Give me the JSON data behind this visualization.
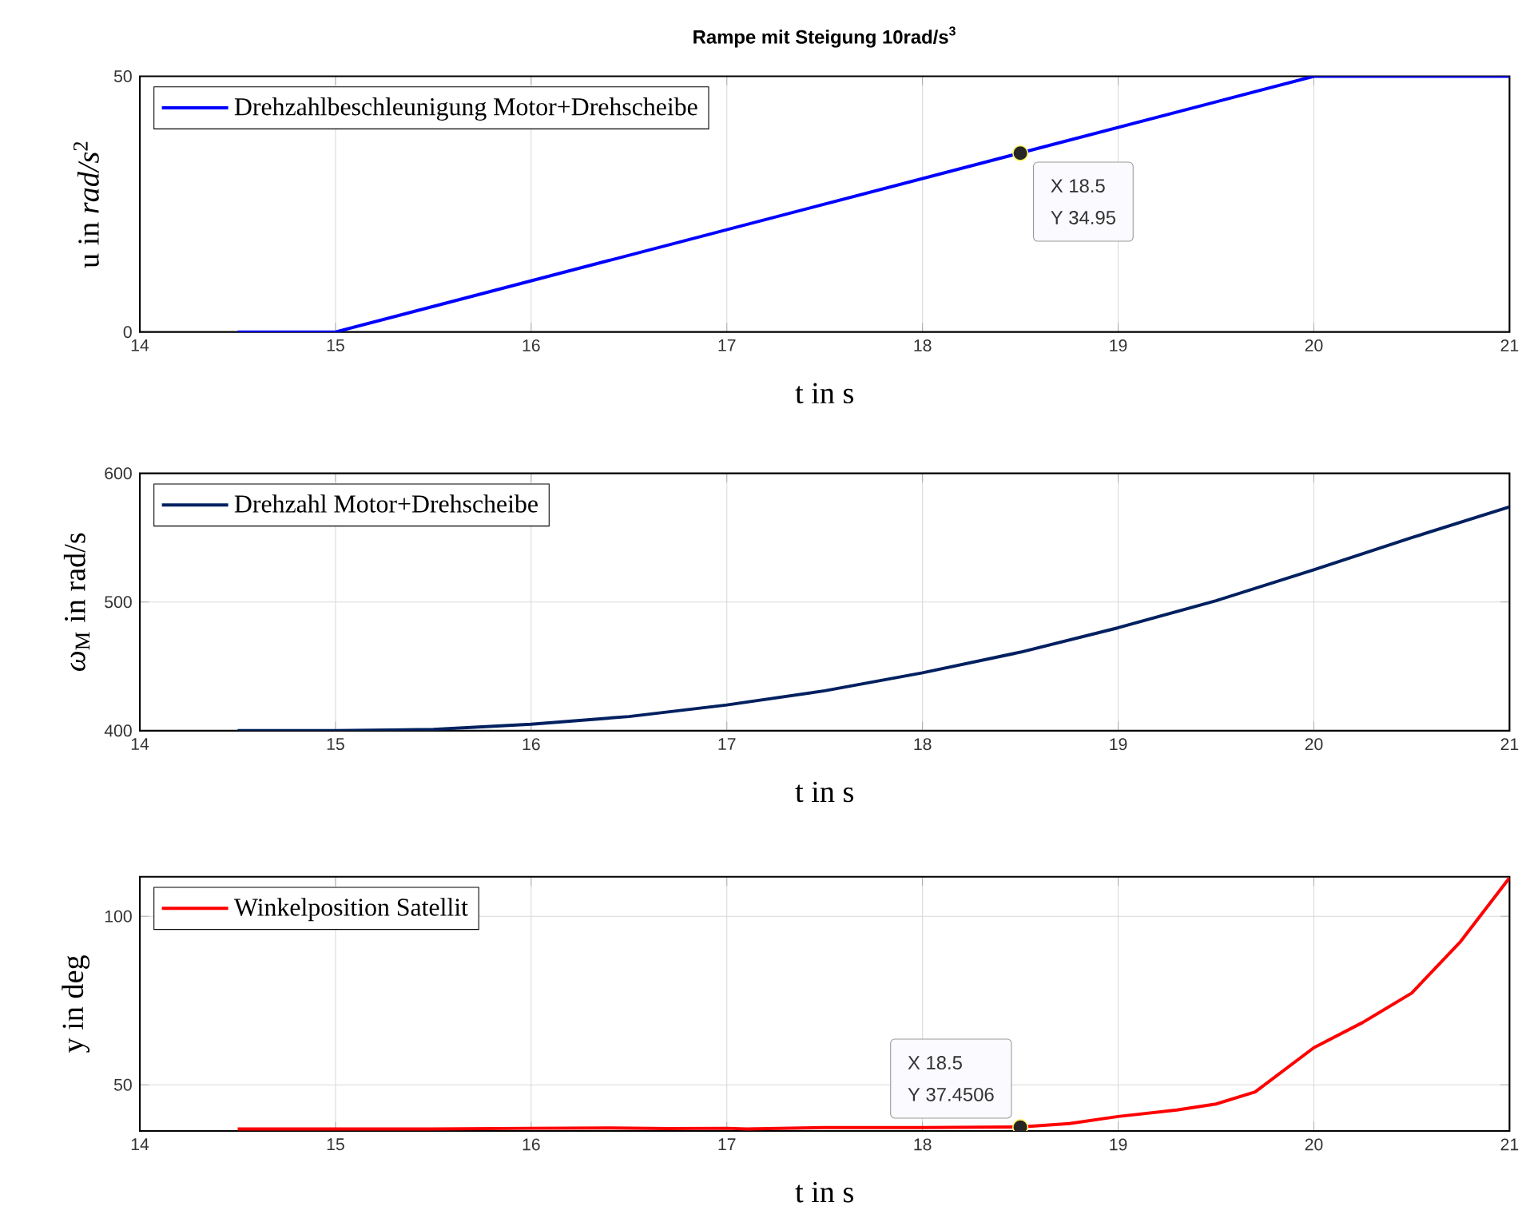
{
  "chart_data": [
    {
      "type": "line",
      "title": "Rampe mit Steigung 10rad/s$^{3}$",
      "xlabel": "t in s",
      "ylabel": "u in *rad/s*$^{2}$",
      "series": [
        {
          "name": "Drehzahlbeschleunigung Motor+Drehscheibe",
          "color": "#0000ff",
          "x": [
            14.5,
            15,
            18.5,
            20,
            21
          ],
          "values": [
            0,
            0,
            35,
            50,
            50
          ]
        }
      ],
      "xlim": [
        14,
        21
      ],
      "ylim": [
        0,
        50
      ],
      "xticks": [
        14,
        15,
        16,
        17,
        18,
        19,
        20,
        21
      ],
      "yticks": [
        0,
        50
      ],
      "annotations": [
        {
          "text": "X 18.5",
          "x": 18.5,
          "y": 34.95
        },
        "Y 34.95"
      ],
      "grid": true,
      "legend": "top left"
    },
    {
      "type": "line",
      "xlabel": "t in s",
      "ylabel": "*ω*$_{M}$ in rad/s",
      "series": [
        {
          "name": "Drehzahl Motor+Drehscheibe",
          "color": "#002060",
          "x": [
            14.5,
            15,
            15.5,
            16,
            16.5,
            17,
            17.5,
            18,
            18.5,
            19,
            19.5,
            20,
            20.5,
            21
          ],
          "values": [
            400,
            400,
            401,
            405,
            411,
            420,
            431,
            445,
            461,
            480,
            501,
            525,
            550,
            574
          ]
        }
      ],
      "xlim": [
        14,
        21
      ],
      "ylim": [
        400,
        600
      ],
      "xticks": [
        14,
        15,
        16,
        17,
        18,
        19,
        20,
        21
      ],
      "yticks": [
        400,
        500,
        600
      ],
      "grid": true,
      "legend": "top left"
    },
    {
      "type": "line",
      "xlabel": "t in s",
      "ylabel": "y in deg",
      "series": [
        {
          "name": "Winkelposition Satellit",
          "color": "#ff0000",
          "x": [
            14.5,
            15,
            15.5,
            16,
            16.4,
            16.7,
            17,
            17.1,
            17.5,
            18,
            18.5,
            18.75,
            19,
            19.3,
            19.5,
            19.7,
            20,
            20.25,
            20.5,
            20.75,
            21
          ],
          "values": [
            36.9,
            36.9,
            36.9,
            37.1,
            37.2,
            37.0,
            37.1,
            36.9,
            37.3,
            37.3,
            37.5,
            38.5,
            40.6,
            42.5,
            44.3,
            47.9,
            61,
            68.5,
            77.2,
            92.5,
            111.4
          ]
        }
      ],
      "xlim": [
        14,
        21
      ],
      "ylim": [
        36.3,
        111.7
      ],
      "xticks": [
        14,
        15,
        16,
        17,
        18,
        19,
        20,
        21
      ],
      "yticks": [
        50,
        100
      ],
      "annotations": [
        "X 18.5",
        {
          "text": "Y 37.4506",
          "x": 18.5,
          "y": 37.4506
        }
      ],
      "grid": true,
      "legend": "top left"
    }
  ]
}
